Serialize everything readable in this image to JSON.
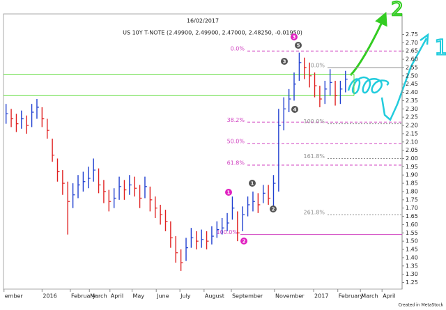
{
  "chart_data": {
    "type": "ohlc",
    "title": "16/02/2017",
    "subtitle": "US 10Y T-NOTE (2.49900, 2.49900, 2.47000, 2.48250, -0.01950)",
    "footer": "Created in MetaStock",
    "up_color": "#1f3fd0",
    "down_color": "#e02020",
    "x": [
      0,
      1,
      2,
      3,
      4,
      5,
      6,
      7,
      8,
      9,
      10,
      11,
      12,
      13,
      14,
      15,
      16,
      17,
      18,
      19,
      20,
      21,
      22,
      23,
      24,
      25,
      26,
      27,
      28,
      29,
      30,
      31,
      32,
      33,
      34,
      35,
      36,
      37,
      38,
      39,
      40,
      41,
      42,
      43,
      44,
      45,
      46,
      47,
      48,
      49,
      50,
      51,
      52,
      53,
      54,
      55,
      56,
      57,
      58,
      59,
      60,
      61,
      62,
      63,
      64,
      65,
      66
    ],
    "high": [
      2.33,
      2.3,
      2.27,
      2.29,
      2.26,
      2.33,
      2.36,
      2.31,
      2.24,
      2.12,
      2.0,
      1.93,
      1.86,
      1.85,
      1.9,
      1.92,
      1.95,
      2.0,
      1.94,
      1.87,
      1.81,
      1.82,
      1.89,
      1.87,
      1.9,
      1.89,
      1.84,
      1.89,
      1.83,
      1.77,
      1.72,
      1.69,
      1.62,
      1.53,
      1.45,
      1.52,
      1.58,
      1.56,
      1.57,
      1.56,
      1.59,
      1.62,
      1.64,
      1.67,
      1.77,
      1.68,
      1.71,
      1.77,
      1.8,
      1.79,
      1.84,
      1.84,
      1.9,
      2.3,
      2.37,
      2.42,
      2.52,
      2.64,
      2.61,
      2.58,
      2.52,
      2.44,
      2.47,
      2.54,
      2.47,
      2.47,
      2.53
    ],
    "low": [
      2.21,
      2.19,
      2.16,
      2.18,
      2.15,
      2.19,
      2.24,
      2.19,
      2.12,
      1.98,
      1.86,
      1.78,
      1.54,
      1.7,
      1.76,
      1.8,
      1.82,
      1.86,
      1.79,
      1.73,
      1.68,
      1.7,
      1.75,
      1.75,
      1.78,
      1.77,
      1.7,
      1.76,
      1.68,
      1.64,
      1.6,
      1.56,
      1.46,
      1.37,
      1.32,
      1.38,
      1.46,
      1.45,
      1.46,
      1.45,
      1.48,
      1.52,
      1.54,
      1.56,
      1.63,
      1.5,
      1.56,
      1.65,
      1.68,
      1.67,
      1.73,
      1.72,
      1.7,
      1.8,
      2.17,
      2.28,
      2.35,
      2.47,
      2.48,
      2.43,
      2.37,
      2.31,
      2.33,
      2.38,
      2.32,
      2.33,
      2.4
    ],
    "close": [
      2.27,
      2.24,
      2.21,
      2.24,
      2.2,
      2.28,
      2.31,
      2.24,
      2.17,
      2.02,
      1.92,
      1.85,
      1.74,
      1.78,
      1.84,
      1.86,
      1.88,
      1.93,
      1.84,
      1.8,
      1.74,
      1.76,
      1.83,
      1.81,
      1.84,
      1.82,
      1.76,
      1.83,
      1.75,
      1.7,
      1.66,
      1.62,
      1.52,
      1.43,
      1.37,
      1.46,
      1.52,
      1.5,
      1.51,
      1.5,
      1.53,
      1.57,
      1.58,
      1.61,
      1.7,
      1.55,
      1.66,
      1.72,
      1.74,
      1.72,
      1.79,
      1.76,
      1.85,
      2.2,
      2.3,
      2.36,
      2.45,
      2.58,
      2.55,
      2.5,
      2.44,
      2.36,
      2.42,
      2.46,
      2.38,
      2.42,
      2.48
    ],
    "xlim": [
      -0.5,
      77
    ],
    "ylim": [
      1.21,
      2.79
    ],
    "xticks": [
      {
        "value": -0.4,
        "label": "ember"
      },
      {
        "value": 7.0,
        "label": "2016"
      },
      {
        "value": 12.5,
        "label": "February"
      },
      {
        "value": 16.2,
        "label": "March"
      },
      {
        "value": 20.2,
        "label": "April"
      },
      {
        "value": 24.5,
        "label": "May"
      },
      {
        "value": 29.2,
        "label": "June"
      },
      {
        "value": 33.8,
        "label": "July"
      },
      {
        "value": 38.5,
        "label": "August"
      },
      {
        "value": 43.8,
        "label": "September"
      },
      {
        "value": 52.2,
        "label": "November"
      },
      {
        "value": 59.8,
        "label": "2017"
      },
      {
        "value": 64.5,
        "label": "February"
      },
      {
        "value": 68.9,
        "label": "March"
      },
      {
        "value": 73.1,
        "label": "April"
      }
    ],
    "yticks": [
      {
        "value": 1.25,
        "label": "1.25"
      },
      {
        "value": 1.3,
        "label": "1.30"
      },
      {
        "value": 1.35,
        "label": "1.35"
      },
      {
        "value": 1.4,
        "label": "1.40"
      },
      {
        "value": 1.45,
        "label": "1.45"
      },
      {
        "value": 1.5,
        "label": "1.50"
      },
      {
        "value": 1.55,
        "label": "1.55"
      },
      {
        "value": 1.6,
        "label": "1.60"
      },
      {
        "value": 1.65,
        "label": "1.65"
      },
      {
        "value": 1.7,
        "label": "1.70"
      },
      {
        "value": 1.75,
        "label": "1.75"
      },
      {
        "value": 1.8,
        "label": "1.80"
      },
      {
        "value": 1.85,
        "label": "1.85"
      },
      {
        "value": 1.9,
        "label": "1.90"
      },
      {
        "value": 1.95,
        "label": "1.95"
      },
      {
        "value": 2,
        "label": "2.00"
      },
      {
        "value": 2.05,
        "label": "2.05"
      },
      {
        "value": 2.1,
        "label": "2.10"
      },
      {
        "value": 2.15,
        "label": "2.15"
      },
      {
        "value": 2.2,
        "label": "2.20"
      },
      {
        "value": 2.25,
        "label": "2.25"
      },
      {
        "value": 2.3,
        "label": "2.30"
      },
      {
        "value": 2.35,
        "label": "2.35"
      },
      {
        "value": 2.4,
        "label": "2.40"
      },
      {
        "value": 2.45,
        "label": "2.45"
      },
      {
        "value": 2.5,
        "label": "2.50"
      },
      {
        "value": 2.55,
        "label": "2.55"
      },
      {
        "value": 2.6,
        "label": "2.60"
      },
      {
        "value": 2.65,
        "label": "2.65"
      },
      {
        "value": 2.7,
        "label": "2.70"
      },
      {
        "value": 2.75,
        "label": "2.75"
      }
    ],
    "levels": [
      {
        "label": "0.0%",
        "value": 2.65,
        "color": "#d040c0"
      },
      {
        "label": "38.2%",
        "value": 2.22,
        "color": "#d040c0"
      },
      {
        "label": "50.0%",
        "value": 2.09,
        "color": "#d040c0"
      },
      {
        "label": "61.8%",
        "value": 1.96,
        "color": "#d040c0"
      },
      {
        "label": "100.0%",
        "value": 1.54,
        "color": "#d040c0"
      },
      {
        "label": "0.0%",
        "value": 2.55,
        "color": "#909090"
      },
      {
        "label": "100.0%",
        "value": 2.21,
        "color": "#909090"
      },
      {
        "label": "161.8%",
        "value": 2.0,
        "color": "#909090"
      },
      {
        "label": "261.8%",
        "value": 1.66,
        "color": "#909090"
      }
    ],
    "green_lines": [
      2.51,
      2.38
    ],
    "green_color": "#66dd44",
    "waves": [
      {
        "label": "1",
        "color": "#e020c0"
      },
      {
        "label": "2",
        "color": "#e020c0"
      },
      {
        "label": "3",
        "color": "#e020c0"
      },
      {
        "label": "1",
        "color": "#555555"
      },
      {
        "label": "2",
        "color": "#555555"
      },
      {
        "label": "3",
        "color": "#555555"
      },
      {
        "label": "4",
        "color": "#555555"
      },
      {
        "label": "5",
        "color": "#555555"
      }
    ],
    "hand_labels": [
      {
        "label": "2",
        "color": "#33cc22"
      },
      {
        "label": "1",
        "color": "#22ccdd"
      }
    ]
  }
}
